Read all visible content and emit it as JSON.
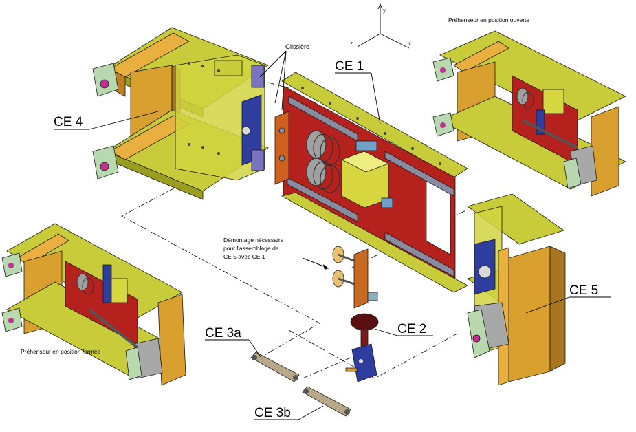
{
  "labels": {
    "ce1": "CE 1",
    "ce2": "CE 2",
    "ce3a": "CE 3a",
    "ce3b": "CE 3b",
    "ce4": "CE 4",
    "ce5": "CE 5",
    "glissiere": "Glissière"
  },
  "captions": {
    "open": "Préhenseur en position ouverte",
    "closed": "Préhenseur en position fermée"
  },
  "note": {
    "line1": "Démontage nécessaire",
    "line2": "pour l'assemblage de",
    "line3": "CE 5 avec CE 1"
  },
  "axes": {
    "x": "x",
    "y": "y",
    "z": "z"
  },
  "colors": {
    "frame_yellow": "#c8cc3a",
    "tube_orange": "#d9a030",
    "plate_red": "#b5221e",
    "slide_grey": "#8a8aa0",
    "block_blue": "#2e3d9e",
    "pivot_green": "#b8d8b0",
    "knob_dark": "#5a1010",
    "spring_grey": "#a0a0a0"
  }
}
